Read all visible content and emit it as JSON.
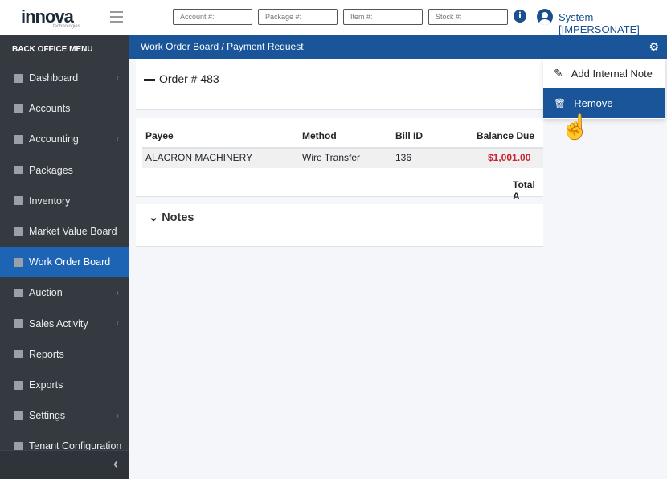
{
  "header": {
    "logo": "innova",
    "logo_sub": "technologies",
    "search": [
      {
        "placeholder": "Account #:"
      },
      {
        "placeholder": "Package #:"
      },
      {
        "placeholder": "Item #:"
      },
      {
        "placeholder": "Stock #:"
      }
    ],
    "user": "System [IMPERSONATE]"
  },
  "sidebar": {
    "title": "BACK OFFICE MENU",
    "items": [
      {
        "label": "Dashboard",
        "chev": "‹"
      },
      {
        "label": "Accounts"
      },
      {
        "label": "Accounting",
        "chev": "‹"
      },
      {
        "label": "Packages"
      },
      {
        "label": "Inventory"
      },
      {
        "label": "Market Value Board"
      },
      {
        "label": "Work Order Board",
        "active": true
      },
      {
        "label": "Auction",
        "chev": "‹"
      },
      {
        "label": "Sales Activity",
        "chev": "‹"
      },
      {
        "label": "Reports"
      },
      {
        "label": "Exports"
      },
      {
        "label": "Settings",
        "chev": "‹"
      },
      {
        "label": "Tenant Configuration"
      }
    ],
    "collapse": "‹"
  },
  "breadcrumb": "Work Order Board  /  Payment Request",
  "order": {
    "title": "Order # 483"
  },
  "table": {
    "headers": [
      "Payee",
      "Method",
      "Bill ID",
      "Balance Due"
    ],
    "row": [
      "ALACRON MACHINERY",
      "Wire Transfer",
      "136",
      "$1,001.00"
    ],
    "total_label": "Total A"
  },
  "notes": {
    "title": "Notes"
  },
  "dropdown": {
    "items": [
      "Add Internal Note",
      "Remove"
    ]
  },
  "colors": {
    "primary": "#1a5499",
    "sidebar": "#343a40",
    "danger": "#c82333"
  }
}
